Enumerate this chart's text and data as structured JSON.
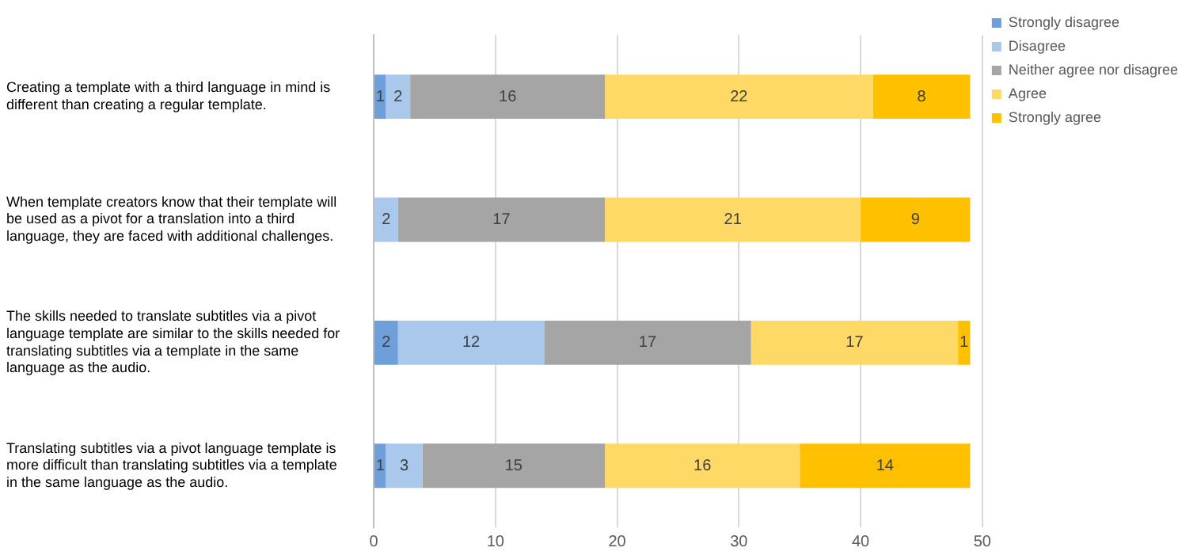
{
  "chart_data": {
    "type": "bar",
    "orientation": "horizontal",
    "stacked": true,
    "categories": [
      "Creating a template with a third language in mind is different than creating a regular template.",
      "When template creators know that their template will be used as a pivot for a translation into a third language, they are faced with additional challenges.",
      "The skills needed to translate subtitles via a pivot language template are similar to the skills needed for translating subtitles via a template in the same language as the audio.",
      "Translating subtitles via a pivot language template is more difficult than translating subtitles via a template in the same language as the audio."
    ],
    "series": [
      {
        "name": "Strongly disagree",
        "color": "#6f9fd8",
        "values": [
          1,
          0,
          2,
          1
        ],
        "value_labels": [
          "1",
          null,
          "2",
          "1"
        ]
      },
      {
        "name": "Disagree",
        "color": "#a9c8ec",
        "values": [
          2,
          2,
          12,
          3
        ],
        "value_labels": [
          "2",
          "2",
          "12",
          "3"
        ]
      },
      {
        "name": "Neither agree nor disagree",
        "color": "#a5a5a5",
        "values": [
          16,
          17,
          17,
          15
        ],
        "value_labels": [
          "16",
          "17",
          "17",
          "15"
        ]
      },
      {
        "name": "Agree",
        "color": "#ffd966",
        "values": [
          22,
          21,
          17,
          16
        ],
        "value_labels": [
          "22",
          "21",
          "17",
          "16"
        ]
      },
      {
        "name": "Strongly agree",
        "color": "#ffc000",
        "values": [
          8,
          9,
          1,
          14
        ],
        "value_labels": [
          "8",
          "9",
          "1",
          "14"
        ]
      }
    ],
    "xlim": [
      0,
      50
    ],
    "xticks": [
      0,
      10,
      20,
      30,
      40,
      50
    ],
    "grid": "x",
    "legend": "top right"
  }
}
